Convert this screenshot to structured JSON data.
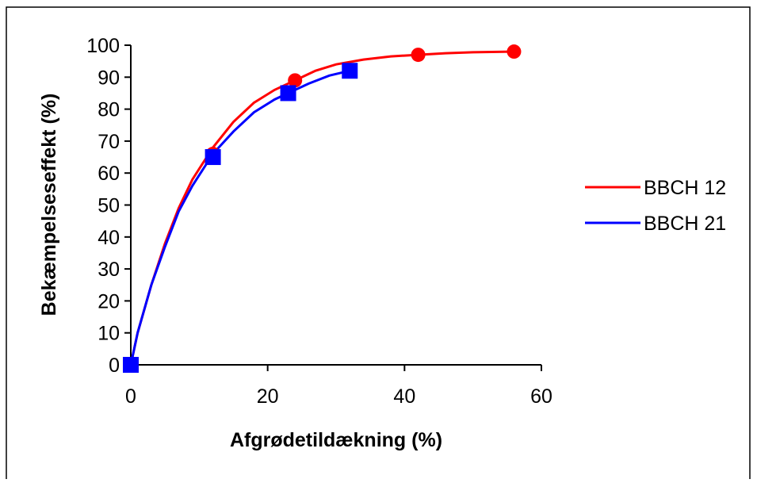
{
  "chart_data": {
    "type": "line",
    "xlabel": "Afgrødetildækning (%)",
    "ylabel": "Bekæmpelseseffekt (%)",
    "xlim": [
      0,
      60
    ],
    "ylim": [
      0,
      100
    ],
    "xticks": [
      "0",
      "20",
      "40",
      "60"
    ],
    "yticks": [
      "0",
      "10",
      "20",
      "30",
      "40",
      "50",
      "60",
      "70",
      "80",
      "90",
      "100"
    ],
    "grid": false,
    "legend_position": "right",
    "series": [
      {
        "name": "BBCH 12",
        "color": "#ff0000",
        "marker": "circle",
        "points": [
          [
            0,
            0
          ],
          [
            12,
            66
          ],
          [
            24,
            89
          ],
          [
            42,
            97
          ],
          [
            56,
            98
          ]
        ],
        "curve": [
          [
            0,
            0
          ],
          [
            1,
            10
          ],
          [
            3,
            25
          ],
          [
            5,
            38
          ],
          [
            7,
            49
          ],
          [
            9,
            58
          ],
          [
            12,
            68
          ],
          [
            15,
            76
          ],
          [
            18,
            82
          ],
          [
            21,
            86
          ],
          [
            24,
            89
          ],
          [
            27,
            92
          ],
          [
            30,
            94
          ],
          [
            34,
            95.5
          ],
          [
            38,
            96.5
          ],
          [
            42,
            97
          ],
          [
            46,
            97.5
          ],
          [
            50,
            97.8
          ],
          [
            56,
            98
          ]
        ]
      },
      {
        "name": "BBCH 21",
        "color": "#0000ff",
        "marker": "square",
        "points": [
          [
            0,
            0
          ],
          [
            12,
            65
          ],
          [
            23,
            85
          ],
          [
            32,
            92
          ]
        ],
        "curve": [
          [
            0,
            0
          ],
          [
            1,
            10
          ],
          [
            3,
            25
          ],
          [
            5,
            37
          ],
          [
            7,
            48
          ],
          [
            9,
            56
          ],
          [
            12,
            66
          ],
          [
            15,
            73
          ],
          [
            18,
            79
          ],
          [
            21,
            83
          ],
          [
            23,
            85
          ],
          [
            26,
            88
          ],
          [
            29,
            90.5
          ],
          [
            32,
            92
          ]
        ]
      }
    ]
  }
}
